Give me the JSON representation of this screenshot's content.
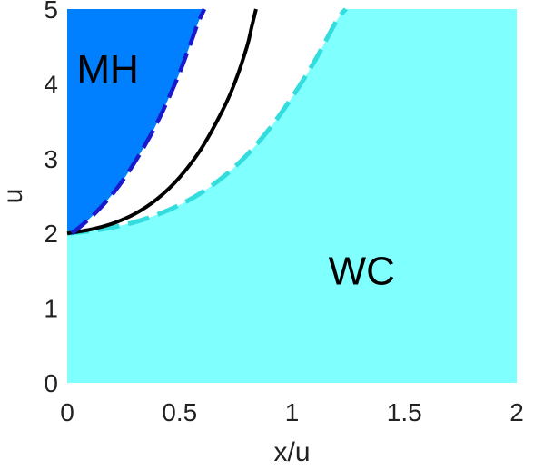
{
  "chart_data": {
    "type": "area",
    "xlabel": "x/u",
    "ylabel": "u",
    "xlim": [
      0,
      2
    ],
    "ylim": [
      0,
      5
    ],
    "xticks": [
      "0",
      "0.5",
      "1",
      "1.5",
      "2"
    ],
    "yticks": [
      "0",
      "1",
      "2",
      "3",
      "4",
      "5"
    ],
    "grid": false,
    "colors": {
      "wc": "#80ffff",
      "mh": "#0080ff",
      "middle": "#ffffff",
      "dashed_cyan": "#33dddd",
      "dashed_blue": "#1a1acc",
      "solid": "#000000"
    },
    "regions": [
      {
        "label": "MH",
        "label_at": {
          "x": 0.18,
          "y": 4.2
        }
      },
      {
        "label": "WC",
        "label_at": {
          "x": 1.31,
          "y": 1.5
        }
      }
    ],
    "series": [
      {
        "style": "dashed-blue",
        "x": [
          0.02,
          0.05,
          0.1,
          0.15,
          0.2,
          0.25,
          0.3,
          0.35,
          0.4,
          0.45,
          0.5,
          0.55,
          0.58,
          0.61
        ],
        "y": [
          2.0,
          2.07,
          2.2,
          2.35,
          2.52,
          2.72,
          2.95,
          3.2,
          3.48,
          3.8,
          4.15,
          4.55,
          4.8,
          5.0
        ]
      },
      {
        "style": "solid-black",
        "x": [
          0.0,
          0.1,
          0.2,
          0.3,
          0.4,
          0.5,
          0.6,
          0.7,
          0.75,
          0.8,
          0.82,
          0.84
        ],
        "y": [
          2.0,
          2.05,
          2.13,
          2.26,
          2.46,
          2.75,
          3.15,
          3.7,
          4.05,
          4.5,
          4.75,
          5.0
        ]
      },
      {
        "style": "dashed-cyan",
        "x": [
          0.0,
          0.1,
          0.2,
          0.3,
          0.4,
          0.5,
          0.6,
          0.7,
          0.8,
          0.9,
          1.0,
          1.1,
          1.2,
          1.24
        ],
        "y": [
          2.0,
          2.03,
          2.08,
          2.15,
          2.25,
          2.38,
          2.55,
          2.77,
          3.05,
          3.4,
          3.82,
          4.3,
          4.85,
          5.0
        ]
      }
    ]
  }
}
